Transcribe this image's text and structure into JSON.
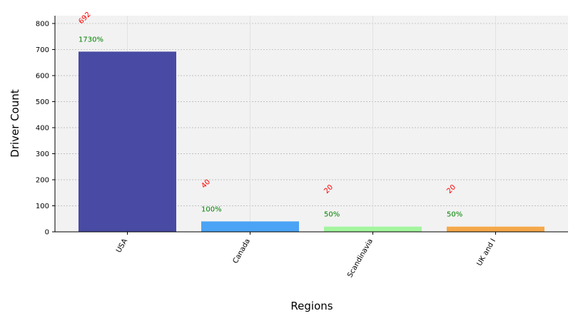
{
  "chart_data": {
    "type": "bar",
    "title": "",
    "xlabel": "Regions",
    "ylabel": "Driver Count",
    "categories": [
      "USA",
      "Canada",
      "Scandinavia",
      "UK and I"
    ],
    "values": [
      692,
      40,
      20,
      20
    ],
    "value_labels": [
      "692",
      "40",
      "20",
      "20"
    ],
    "percent_labels": [
      "1730%",
      "100%",
      "50%",
      "50%"
    ],
    "bar_colors": [
      "#484aa3",
      "#4aa3f5",
      "#a3f59e",
      "#f5a84a"
    ],
    "value_label_color": "#ff0000",
    "percent_label_color": "#008000",
    "ylim": [
      0,
      830
    ],
    "yticks": [
      0,
      100,
      200,
      300,
      400,
      500,
      600,
      700,
      800
    ],
    "grid": true,
    "background": "#f2f2f2"
  }
}
